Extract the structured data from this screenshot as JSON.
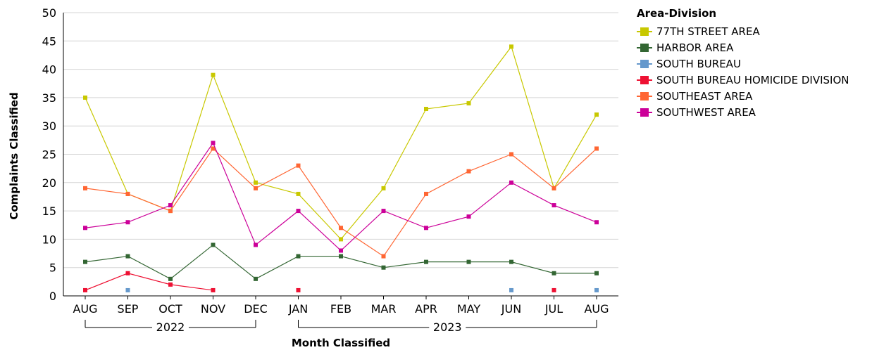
{
  "chart_data": {
    "type": "line",
    "ylabel": "Complaints Classified",
    "xlabel": "Month Classified",
    "ylim": [
      0,
      50
    ],
    "yticks": [
      0,
      5,
      10,
      15,
      20,
      25,
      30,
      35,
      40,
      45,
      50
    ],
    "grid": true,
    "legend_placement": "right",
    "categories": [
      "AUG",
      "SEP",
      "OCT",
      "NOV",
      "DEC",
      "JAN",
      "FEB",
      "MAR",
      "APR",
      "MAY",
      "JUN",
      "JUL",
      "AUG"
    ],
    "year_groups": [
      {
        "label": "2022",
        "from": 0,
        "to": 4
      },
      {
        "label": "2023",
        "from": 5,
        "to": 12
      }
    ],
    "legend_title": "Area-Division",
    "series": [
      {
        "name": "77TH STREET AREA",
        "color": "#c8c800",
        "values": [
          35,
          18,
          15,
          39,
          20,
          18,
          10,
          19,
          33,
          34,
          44,
          19,
          32
        ]
      },
      {
        "name": "HARBOR AREA",
        "color": "#336633",
        "values": [
          6,
          7,
          3,
          9,
          3,
          7,
          7,
          5,
          6,
          6,
          6,
          4,
          4
        ]
      },
      {
        "name": "SOUTH BUREAU",
        "color": "#6699cc",
        "values": [
          null,
          1,
          null,
          null,
          null,
          null,
          null,
          null,
          null,
          null,
          1,
          null,
          1
        ]
      },
      {
        "name": "SOUTH BUREAU HOMICIDE DIVISION",
        "color": "#ee1133",
        "values": [
          1,
          4,
          2,
          1,
          null,
          1,
          null,
          null,
          null,
          null,
          null,
          1,
          null
        ]
      },
      {
        "name": "SOUTHEAST AREA",
        "color": "#ff6633",
        "values": [
          19,
          18,
          15,
          26,
          19,
          23,
          12,
          7,
          18,
          22,
          25,
          19,
          26
        ]
      },
      {
        "name": "SOUTHWEST AREA",
        "color": "#cc0099",
        "values": [
          12,
          13,
          16,
          27,
          9,
          15,
          8,
          15,
          12,
          14,
          20,
          16,
          13
        ]
      }
    ]
  }
}
